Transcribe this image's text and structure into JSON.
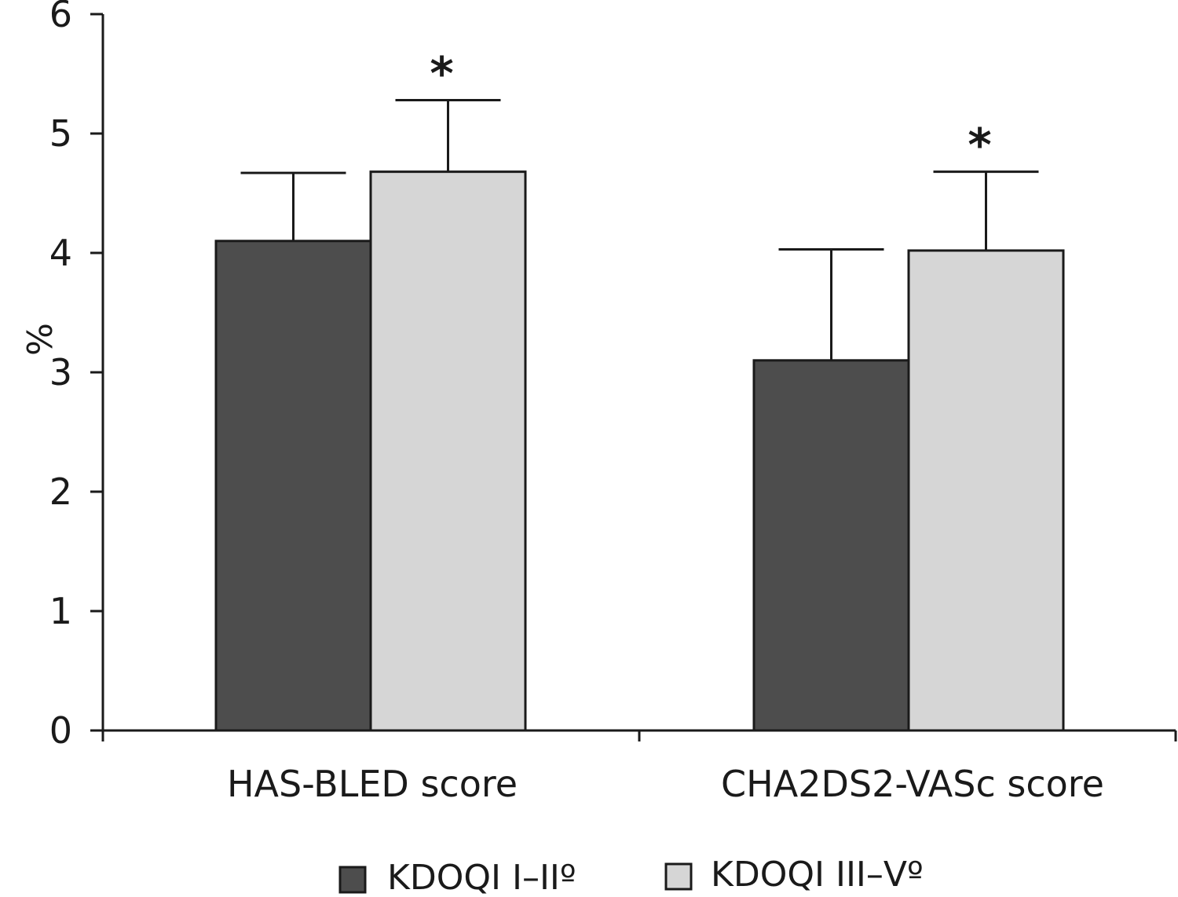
{
  "chart_data": {
    "type": "bar",
    "title": "",
    "xlabel": "",
    "ylabel": "%",
    "ylim": [
      0,
      6
    ],
    "yticks": [
      "0",
      "1",
      "2",
      "3",
      "4",
      "5",
      "6"
    ],
    "grid": false,
    "legend_position": "bottom",
    "categories": [
      "HAS-BLED score",
      "CHA2DS2-VASc score"
    ],
    "series": [
      {
        "name": "KDOQI I–IIº",
        "color": "#4d4d4d",
        "values": [
          4.1,
          3.1
        ],
        "error": [
          0.57,
          0.93
        ]
      },
      {
        "name": "KDOQI III–Vº",
        "color": "#d6d6d6",
        "values": [
          4.68,
          4.02
        ],
        "error": [
          0.6,
          0.66
        ]
      }
    ],
    "annotations": [
      {
        "text": "*",
        "category": 0,
        "series": 1
      },
      {
        "text": "*",
        "category": 1,
        "series": 1
      }
    ]
  }
}
